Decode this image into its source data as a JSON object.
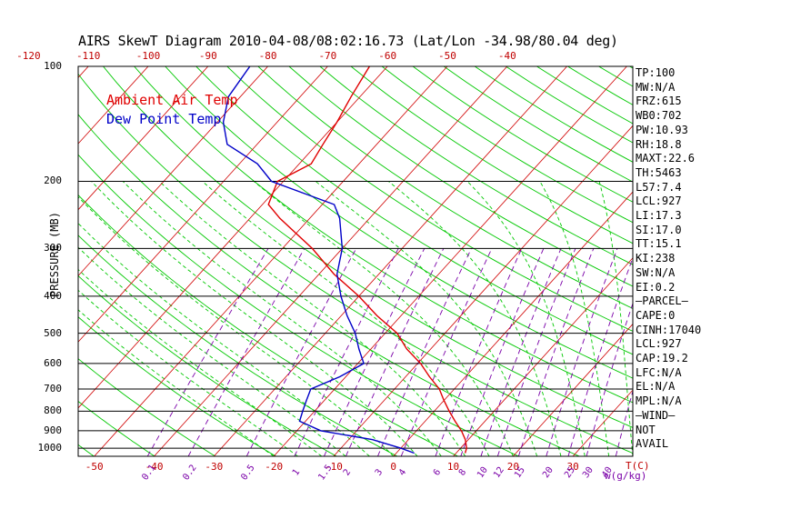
{
  "title": "AIRS SkewT Diagram 2010-04-08/08:02:16.73 (Lat/Lon -34.98/80.04 deg)",
  "legend": {
    "air": "Ambient Air Temp",
    "dew": "Dew Point Temp"
  },
  "colors": {
    "air": "#e00000",
    "dew": "#0000c8",
    "dry_adiabat": "#00c800",
    "isotherm": "#d00000",
    "mixing": "#7a00a8",
    "moist_adiabat": "#00c800"
  },
  "chart_data": {
    "type": "line",
    "title": "AIRS SkewT Diagram 2010-04-08/08:02:16.73 (Lat/Lon -34.98/80.04 deg)",
    "xlabel": "T(C)",
    "ylabel": "PRESSURE (MB)",
    "yscale": "log",
    "ylim": [
      1050,
      100
    ],
    "pressure_ticks": [
      "100",
      "200",
      "300",
      "400",
      "500",
      "600",
      "700",
      "800",
      "900",
      "1000"
    ],
    "top_temp_ticks": [
      "-120",
      "-110",
      "-100",
      "-90",
      "-80",
      "-70",
      "-60",
      "-50",
      "-40"
    ],
    "bottom_temp_ticks": [
      "-50",
      "-40",
      "-30",
      "-20",
      "-10",
      "0",
      "10",
      "20",
      "30"
    ],
    "mixing_ratio_ticks": [
      "0.1",
      "0.2",
      "0.5",
      "1",
      "1.5",
      "2",
      "3",
      "4",
      "6",
      "8",
      "10",
      "12",
      "15",
      "20",
      "25",
      "30",
      "40"
    ],
    "mixing_ratio_unit": "w(g/kg)",
    "series": [
      {
        "name": "Ambient Air Temp",
        "pressure": [
          1030,
          1000,
          950,
          900,
          850,
          800,
          750,
          700,
          650,
          600,
          550,
          500,
          450,
          400,
          350,
          300,
          250,
          230,
          200,
          180,
          160,
          140,
          120,
          100
        ],
        "temp": [
          11.5,
          11,
          9.5,
          7.5,
          5,
          2.5,
          0,
          -2.5,
          -6,
          -9.5,
          -14,
          -18,
          -24,
          -30,
          -37.5,
          -45,
          -55,
          -59,
          -61,
          -58,
          -59,
          -60,
          -61.5,
          -63
        ]
      },
      {
        "name": "Dew Point Temp",
        "pressure": [
          1030,
          1000,
          950,
          900,
          850,
          800,
          750,
          700,
          650,
          600,
          550,
          500,
          450,
          400,
          350,
          300,
          250,
          230,
          200,
          180,
          160,
          140,
          120,
          100
        ],
        "temp": [
          3,
          0,
          -6,
          -16,
          -21,
          -22,
          -23,
          -24,
          -21,
          -19,
          -22,
          -25,
          -29,
          -33,
          -37,
          -40,
          -45,
          -48,
          -62,
          -67,
          -75,
          -79,
          -82,
          -83
        ]
      }
    ]
  },
  "stats": [
    "TP:100",
    "MW:N/A",
    "FRZ:615",
    "WB0:702",
    "PW:10.93",
    "RH:18.8",
    "MAXT:22.6",
    "TH:5463",
    "L57:7.4",
    "LCL:927",
    "LI:17.3",
    "SI:17.0",
    "TT:15.1",
    "KI:238",
    "SW:N/A",
    "EI:0.2",
    "—PARCEL—",
    "CAPE:0",
    "CINH:17040",
    "LCL:927",
    "CAP:19.2",
    "LFC:N/A",
    "EL:N/A",
    "MPL:N/A",
    "—WIND—",
    "NOT",
    "AVAIL"
  ]
}
